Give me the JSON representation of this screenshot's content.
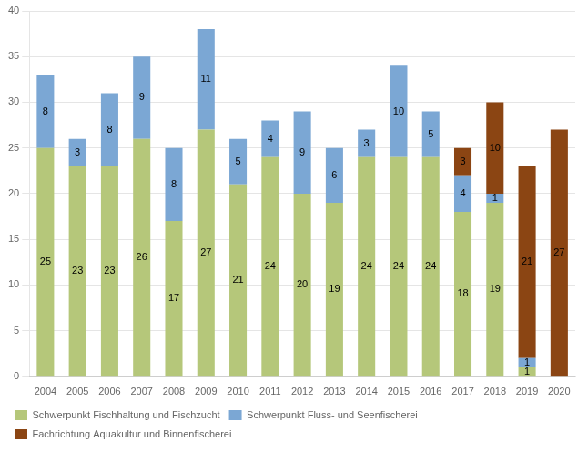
{
  "chart_data": {
    "type": "bar",
    "stacked": true,
    "categories": [
      "2004",
      "2005",
      "2006",
      "2007",
      "2008",
      "2009",
      "2010",
      "2011",
      "2012",
      "2013",
      "2014",
      "2015",
      "2016",
      "2017",
      "2018",
      "2019",
      "2020"
    ],
    "series": [
      {
        "name": "Schwerpunkt Fischhaltung und Fischzucht",
        "color": "#b5c77a",
        "values": [
          25,
          23,
          23,
          26,
          17,
          27,
          21,
          24,
          20,
          19,
          24,
          24,
          24,
          18,
          19,
          1,
          0
        ]
      },
      {
        "name": "Schwerpunkt Fluss- und Seenfischerei",
        "color": "#7ba7d4",
        "values": [
          8,
          3,
          8,
          9,
          8,
          11,
          5,
          4,
          9,
          6,
          3,
          10,
          5,
          4,
          1,
          1,
          0
        ]
      },
      {
        "name": "Fachrichtung Aquakultur und Binnenfischerei",
        "color": "#8b4513",
        "values": [
          0,
          0,
          0,
          0,
          0,
          0,
          0,
          0,
          0,
          0,
          0,
          0,
          0,
          3,
          10,
          21,
          27
        ]
      }
    ],
    "ylim": [
      0,
      40
    ],
    "yticks": [
      0,
      5,
      10,
      15,
      20,
      25,
      30,
      35,
      40
    ],
    "grid": true,
    "legend": "bottom",
    "data_labels": true
  }
}
